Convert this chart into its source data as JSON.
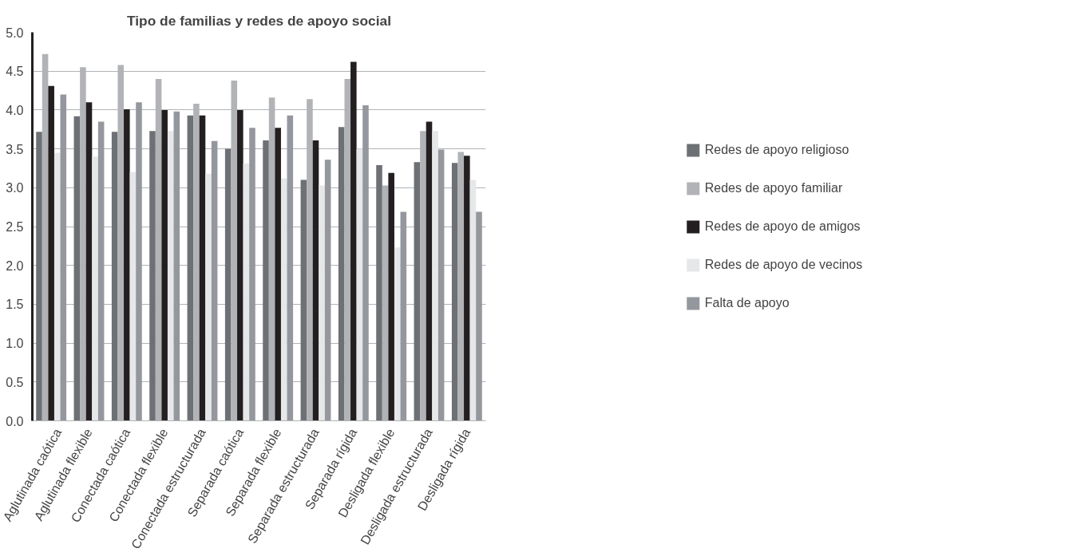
{
  "chart_data": {
    "type": "bar",
    "title": "Tipo de familias y redes de apoyo social",
    "categories": [
      "Aglutinada caótica",
      "Aglutinada flexible",
      "Conectada caótica",
      "Conectada flexible",
      "Conectada estructurada",
      "Separada caótica",
      "Separada flexible",
      "Separada estructurada",
      "Separada rígida",
      "Desligada flexible",
      "Desligada estructurada",
      "Desligada rígida"
    ],
    "series": [
      {
        "name": "Redes de apoyo religioso",
        "color": "#6d7074",
        "values": [
          3.72,
          3.92,
          3.72,
          3.73,
          3.93,
          3.5,
          3.61,
          3.1,
          3.78,
          3.29,
          3.33,
          3.32
        ]
      },
      {
        "name": "Redes de apoyo familiar",
        "color": "#b1b3b6",
        "values": [
          4.72,
          4.55,
          4.58,
          4.4,
          4.08,
          4.38,
          4.16,
          4.14,
          4.4,
          3.03,
          3.73,
          3.46
        ]
      },
      {
        "name": "Redes de apoyo de amigos",
        "color": "#231f20",
        "values": [
          4.31,
          4.1,
          4.01,
          4.0,
          3.93,
          4.0,
          3.77,
          3.61,
          4.62,
          3.19,
          3.85,
          3.41
        ]
      },
      {
        "name": "Redes de apoyo de vecinos",
        "color": "#e6e7e9",
        "values": [
          3.45,
          3.4,
          3.2,
          3.73,
          3.18,
          3.31,
          3.12,
          3.03,
          3.5,
          2.23,
          3.73,
          3.1
        ]
      },
      {
        "name": "Falta de apoyo",
        "color": "#94979d",
        "values": [
          4.2,
          3.85,
          4.1,
          3.98,
          3.6,
          3.77,
          3.93,
          3.36,
          4.06,
          2.69,
          3.49,
          2.69
        ]
      }
    ],
    "ylim": [
      0,
      5
    ],
    "yticks": [
      {
        "value": 0,
        "label": "0.0"
      },
      {
        "value": 0.5,
        "label": "0.5"
      },
      {
        "value": 1,
        "label": "1.0"
      },
      {
        "value": 1.5,
        "label": "1.5"
      },
      {
        "value": 2,
        "label": "2.0"
      },
      {
        "value": 2.5,
        "label": "2.5"
      },
      {
        "value": 3,
        "label": "3.0"
      },
      {
        "value": 3.5,
        "label": "3.5"
      },
      {
        "value": 4,
        "label": "4.0"
      },
      {
        "value": 4.5,
        "label": "4.5"
      },
      {
        "value": 5,
        "label": "5.0"
      }
    ],
    "grid": "y",
    "legend": "right"
  }
}
